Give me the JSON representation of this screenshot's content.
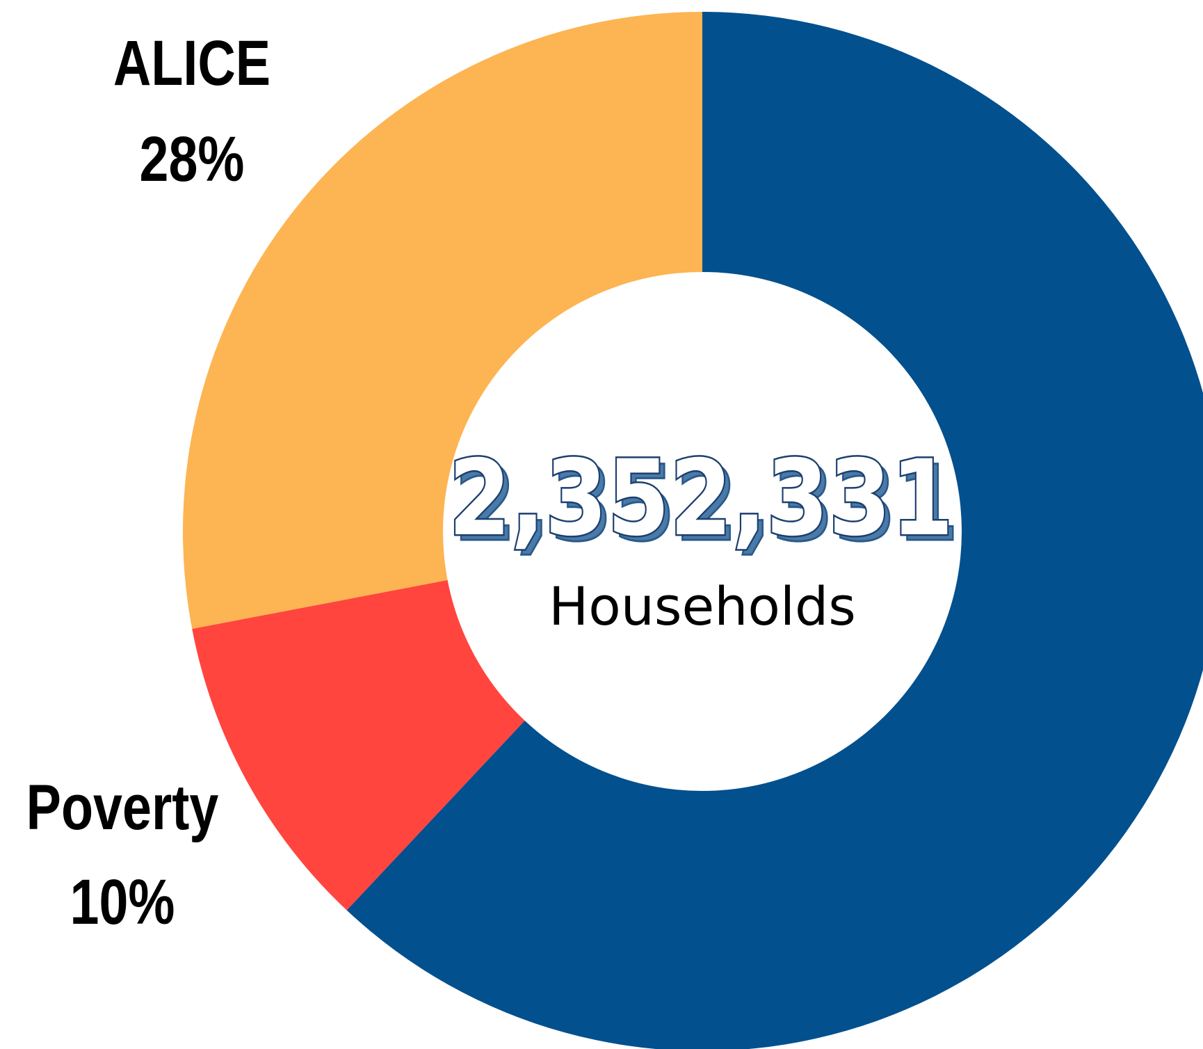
{
  "chart_data": {
    "type": "pie",
    "total": {
      "value": "2,352,331",
      "unit": "Households"
    },
    "slices": [
      {
        "label": "",
        "value": 62,
        "percent_label": "",
        "color": "#02508e"
      },
      {
        "label": "Poverty",
        "value": 10,
        "percent_label": "10%",
        "color": "#ff453e"
      },
      {
        "label": "ALICE",
        "value": 28,
        "percent_label": "28%",
        "color": "#fdb452"
      }
    ]
  }
}
